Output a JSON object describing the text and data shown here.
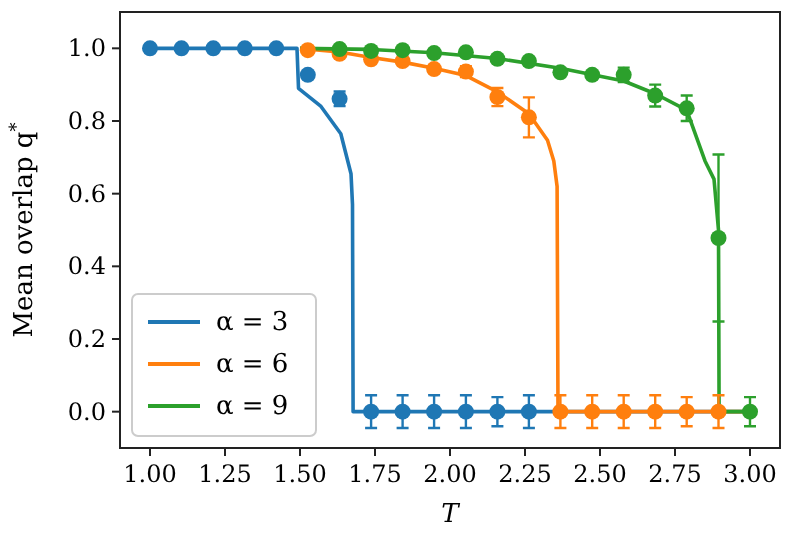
{
  "chart_data": {
    "type": "line",
    "xlabel": "T",
    "ylabel": "Mean overlap q$^{*}$",
    "xlim": [
      0.9,
      3.1
    ],
    "ylim": [
      -0.1,
      1.1
    ],
    "xticks": [
      {
        "value": 1,
        "label": "1.00"
      },
      {
        "value": 1.25,
        "label": "1.25"
      },
      {
        "value": 1.5,
        "label": "1.50"
      },
      {
        "value": 1.75,
        "label": "1.75"
      },
      {
        "value": 2,
        "label": "2.00"
      },
      {
        "value": 2.25,
        "label": "2.25"
      },
      {
        "value": 2.5,
        "label": "2.50"
      },
      {
        "value": 2.75,
        "label": "2.75"
      },
      {
        "value": 3,
        "label": "3.00"
      }
    ],
    "yticks": [
      {
        "value": 0,
        "label": "0.0"
      },
      {
        "value": 0.2,
        "label": "0.2"
      },
      {
        "value": 0.4,
        "label": "0.4"
      },
      {
        "value": 0.6,
        "label": "0.6"
      },
      {
        "value": 0.8,
        "label": "0.8"
      },
      {
        "value": 1,
        "label": "1.0"
      }
    ],
    "grid": false,
    "legend": "bottom left",
    "line_style": "solid",
    "series": [
      {
        "type": "line",
        "name": "α = 3",
        "color": "#1f77b4",
        "marker": "none",
        "x": [
          1.0,
          1.49,
          1.495,
          1.57,
          1.636,
          1.67,
          1.675,
          1.677,
          3.0
        ],
        "values": [
          1.0,
          1.0,
          0.89,
          0.84,
          0.765,
          0.655,
          0.57,
          0.0,
          0.0
        ]
      },
      {
        "type": "line",
        "name": "α = 6",
        "color": "#ff7f0e",
        "marker": "none",
        "x": [
          1.5,
          1.632,
          1.737,
          1.842,
          1.947,
          2.053,
          2.158,
          2.263,
          2.325,
          2.346,
          2.357,
          2.36,
          3.0
        ],
        "values": [
          1.0,
          0.99,
          0.975,
          0.962,
          0.945,
          0.925,
          0.88,
          0.82,
          0.747,
          0.69,
          0.62,
          0.0,
          0.0
        ]
      },
      {
        "type": "line",
        "name": "α = 9",
        "color": "#2ca02c",
        "marker": "none",
        "x": [
          1.5,
          1.737,
          1.947,
          2.158,
          2.368,
          2.579,
          2.684,
          2.789,
          2.85,
          2.88,
          2.895,
          2.897,
          3.0
        ],
        "values": [
          1.0,
          0.997,
          0.988,
          0.972,
          0.945,
          0.91,
          0.875,
          0.83,
          0.69,
          0.64,
          0.5,
          0.0,
          0.0
        ]
      },
      {
        "type": "scatter",
        "color": "#1f77b4",
        "marker": "circle",
        "x": [
          1.0,
          1.105,
          1.211,
          1.316,
          1.421,
          1.526,
          1.632,
          1.737,
          1.842,
          1.947,
          2.053,
          2.158,
          2.263
        ],
        "values": [
          1.0,
          1.0,
          1.0,
          1.0,
          1.0,
          0.927,
          0.861,
          0.0,
          0.0,
          0.0,
          0.0,
          0.0,
          0.0
        ],
        "errors": [
          null,
          null,
          null,
          null,
          null,
          0.01,
          0.02,
          0.045,
          0.045,
          0.045,
          0.045,
          0.04,
          0.045
        ]
      },
      {
        "type": "scatter",
        "color": "#ff7f0e",
        "marker": "circle",
        "x": [
          1.526,
          1.632,
          1.737,
          1.842,
          1.947,
          2.053,
          2.158,
          2.263,
          2.368,
          2.474,
          2.579,
          2.684,
          2.789,
          2.895
        ],
        "values": [
          0.995,
          0.985,
          0.97,
          0.965,
          0.943,
          0.936,
          0.866,
          0.81,
          0.0,
          0.0,
          0.0,
          0.0,
          0.0,
          0.0
        ],
        "errors": [
          null,
          null,
          null,
          null,
          null,
          0.015,
          0.025,
          0.055,
          0.045,
          0.045,
          0.045,
          0.045,
          0.04,
          0.045
        ]
      },
      {
        "type": "scatter",
        "color": "#2ca02c",
        "marker": "circle",
        "x": [
          1.632,
          1.737,
          1.842,
          1.947,
          2.053,
          2.158,
          2.263,
          2.368,
          2.474,
          2.579,
          2.684,
          2.789,
          2.895,
          3.0
        ],
        "values": [
          0.998,
          0.993,
          0.995,
          0.987,
          0.989,
          0.971,
          0.965,
          0.934,
          0.927,
          0.927,
          0.87,
          0.835,
          0.478,
          0.0
        ],
        "errors": [
          null,
          null,
          null,
          null,
          null,
          null,
          null,
          null,
          null,
          0.02,
          0.03,
          0.035,
          0.23,
          0.04
        ]
      }
    ]
  }
}
